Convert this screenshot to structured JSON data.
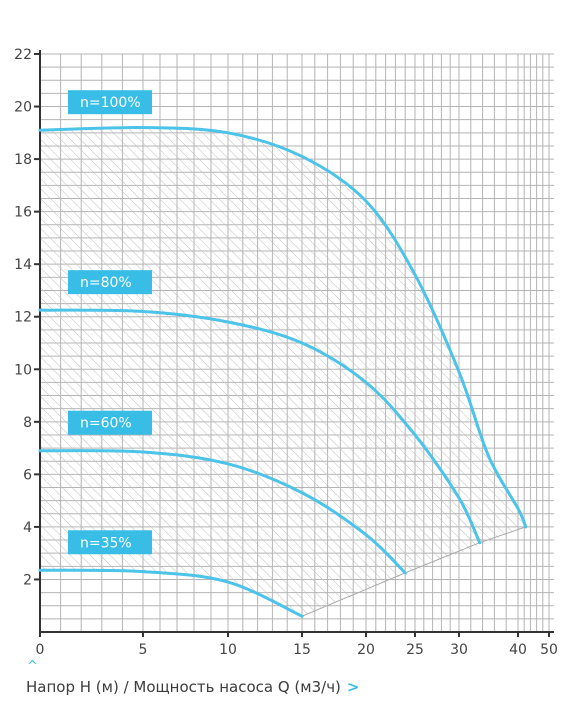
{
  "chart_data": {
    "type": "line",
    "title": "",
    "xlabel": "Напор H (м) / Мощность насоса Q (м3/ч)",
    "ylabel": "",
    "x_tick_labels": [
      "0",
      "5",
      "10",
      "15",
      "20",
      "25",
      "30",
      "40",
      "50"
    ],
    "y_tick_labels": [
      "2",
      "4",
      "6",
      "8",
      "10",
      "12",
      "14",
      "16",
      "18",
      "20",
      "22"
    ],
    "ylim": [
      0,
      22
    ],
    "grid": true,
    "hatched_operating_area": true,
    "series": [
      {
        "name": "n=100%",
        "points": [
          [
            0,
            19.1
          ],
          [
            5,
            19.2
          ],
          [
            10,
            19.0
          ],
          [
            15,
            18.1
          ],
          [
            20,
            16.4
          ],
          [
            25,
            13.6
          ],
          [
            30,
            9.9
          ],
          [
            35,
            6.7
          ],
          [
            40,
            4.7
          ],
          [
            42.5,
            4.0
          ]
        ]
      },
      {
        "name": "n=80%",
        "points": [
          [
            0,
            12.25
          ],
          [
            5,
            12.2
          ],
          [
            10,
            11.8
          ],
          [
            15,
            11.0
          ],
          [
            20,
            9.5
          ],
          [
            25,
            7.5
          ],
          [
            30,
            5.1
          ],
          [
            33.5,
            3.4
          ]
        ]
      },
      {
        "name": "n=60%",
        "points": [
          [
            0,
            6.9
          ],
          [
            5,
            6.85
          ],
          [
            10,
            6.4
          ],
          [
            15,
            5.3
          ],
          [
            20,
            3.7
          ],
          [
            24,
            2.25
          ]
        ]
      },
      {
        "name": "n=35%",
        "points": [
          [
            0,
            2.35
          ],
          [
            5,
            2.3
          ],
          [
            10,
            1.9
          ],
          [
            15,
            0.6
          ]
        ]
      }
    ],
    "colors": {
      "curve": "#4cc3e8",
      "label_bg": "#38bde6",
      "label_text": "#ffffff",
      "grid": "#b4b4b4",
      "hatch": "#c0c0c0",
      "axis": "#333333",
      "envelope_line": "#aaaaaa",
      "tick_text": "#444444"
    }
  },
  "caption": {
    "text": "Напор H (м) / Мощность насоса Q (м3/ч)",
    "caret_left": "^",
    "caret_right": ">"
  }
}
